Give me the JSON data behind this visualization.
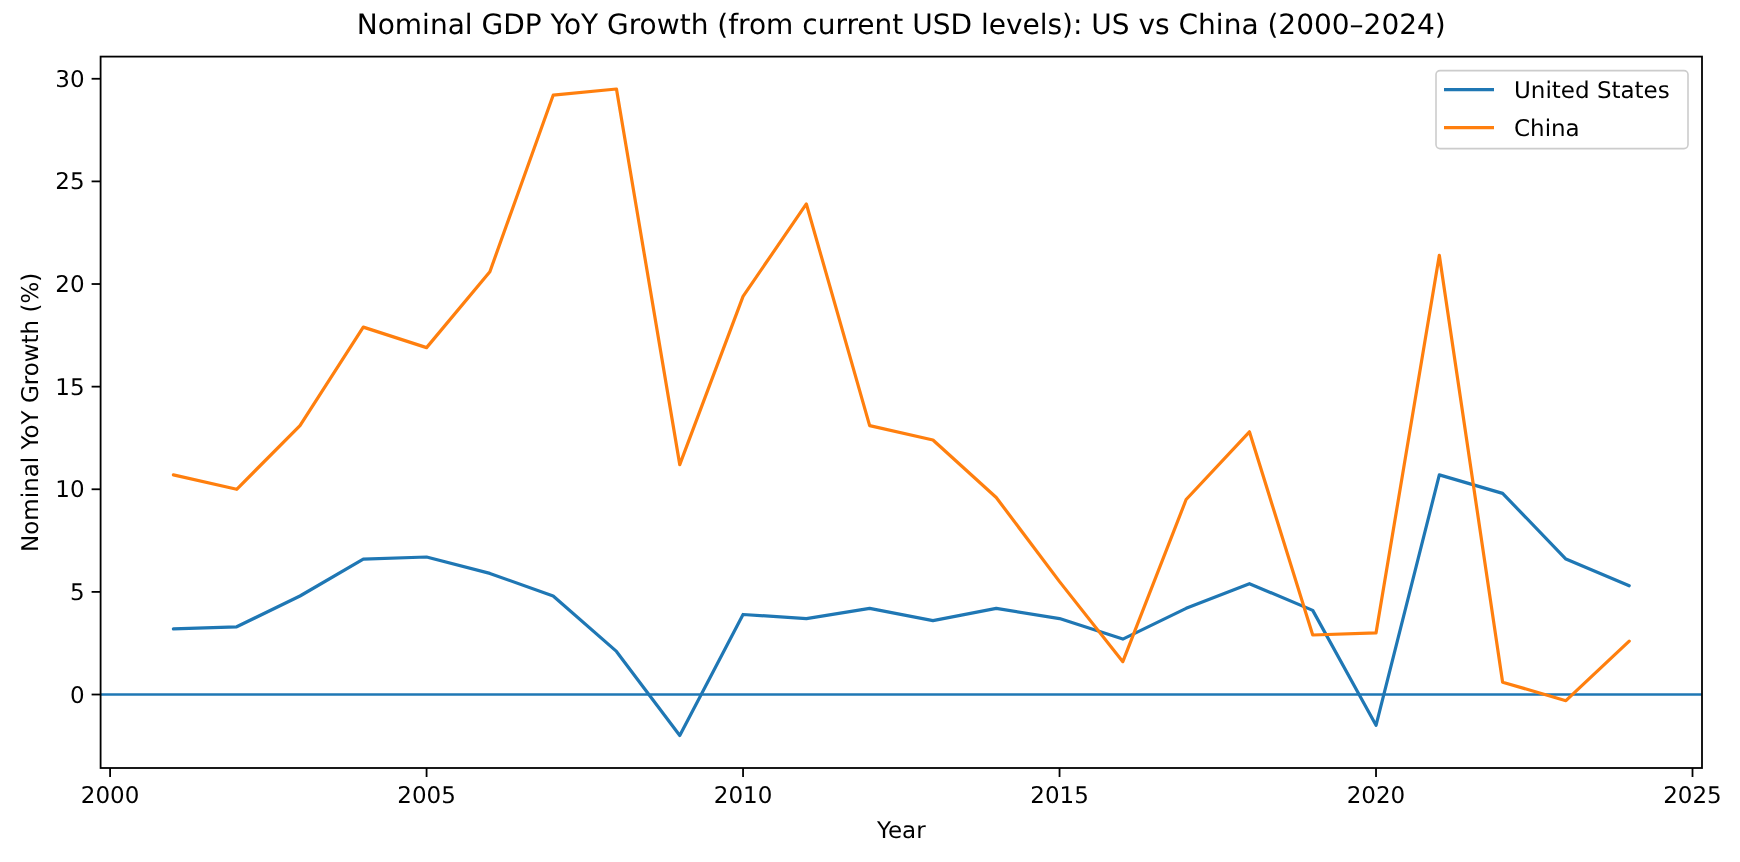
{
  "chart_data": {
    "type": "line",
    "title": "Nominal GDP YoY Growth (from current USD levels): US vs China (2000–2024)",
    "xlabel": "Year",
    "ylabel": "Nominal YoY Growth (%)",
    "x": [
      2001,
      2002,
      2003,
      2004,
      2005,
      2006,
      2007,
      2008,
      2009,
      2010,
      2011,
      2012,
      2013,
      2014,
      2015,
      2016,
      2017,
      2018,
      2019,
      2020,
      2021,
      2022,
      2023,
      2024
    ],
    "series": [
      {
        "name": "United States",
        "color": "#1f77b4",
        "values": [
          3.2,
          3.3,
          4.8,
          6.6,
          6.7,
          5.9,
          4.8,
          2.1,
          -2.0,
          3.9,
          3.7,
          4.2,
          3.6,
          4.2,
          3.7,
          2.7,
          4.2,
          5.4,
          4.1,
          -1.5,
          10.7,
          9.8,
          6.6,
          5.3
        ]
      },
      {
        "name": "China",
        "color": "#ff7f0e",
        "values": [
          10.7,
          10.0,
          13.1,
          17.9,
          16.9,
          20.6,
          29.2,
          29.5,
          11.2,
          19.4,
          23.9,
          13.1,
          12.4,
          9.6,
          5.5,
          1.6,
          9.5,
          12.8,
          2.9,
          3.0,
          21.4,
          0.6,
          -0.3,
          2.6
        ]
      }
    ],
    "xlim": [
      1999.85,
      2025.15
    ],
    "xticks": [
      2000,
      2005,
      2010,
      2015,
      2020,
      2025
    ],
    "ylim": [
      -3.58,
      31.08
    ],
    "yticks": [
      0,
      5,
      10,
      15,
      20,
      25,
      30
    ],
    "ref_lines": [
      {
        "axis": "y",
        "value": 0,
        "color": "#1f77b4"
      }
    ],
    "grid": false,
    "legend": "top right",
    "line_style": "solid"
  }
}
